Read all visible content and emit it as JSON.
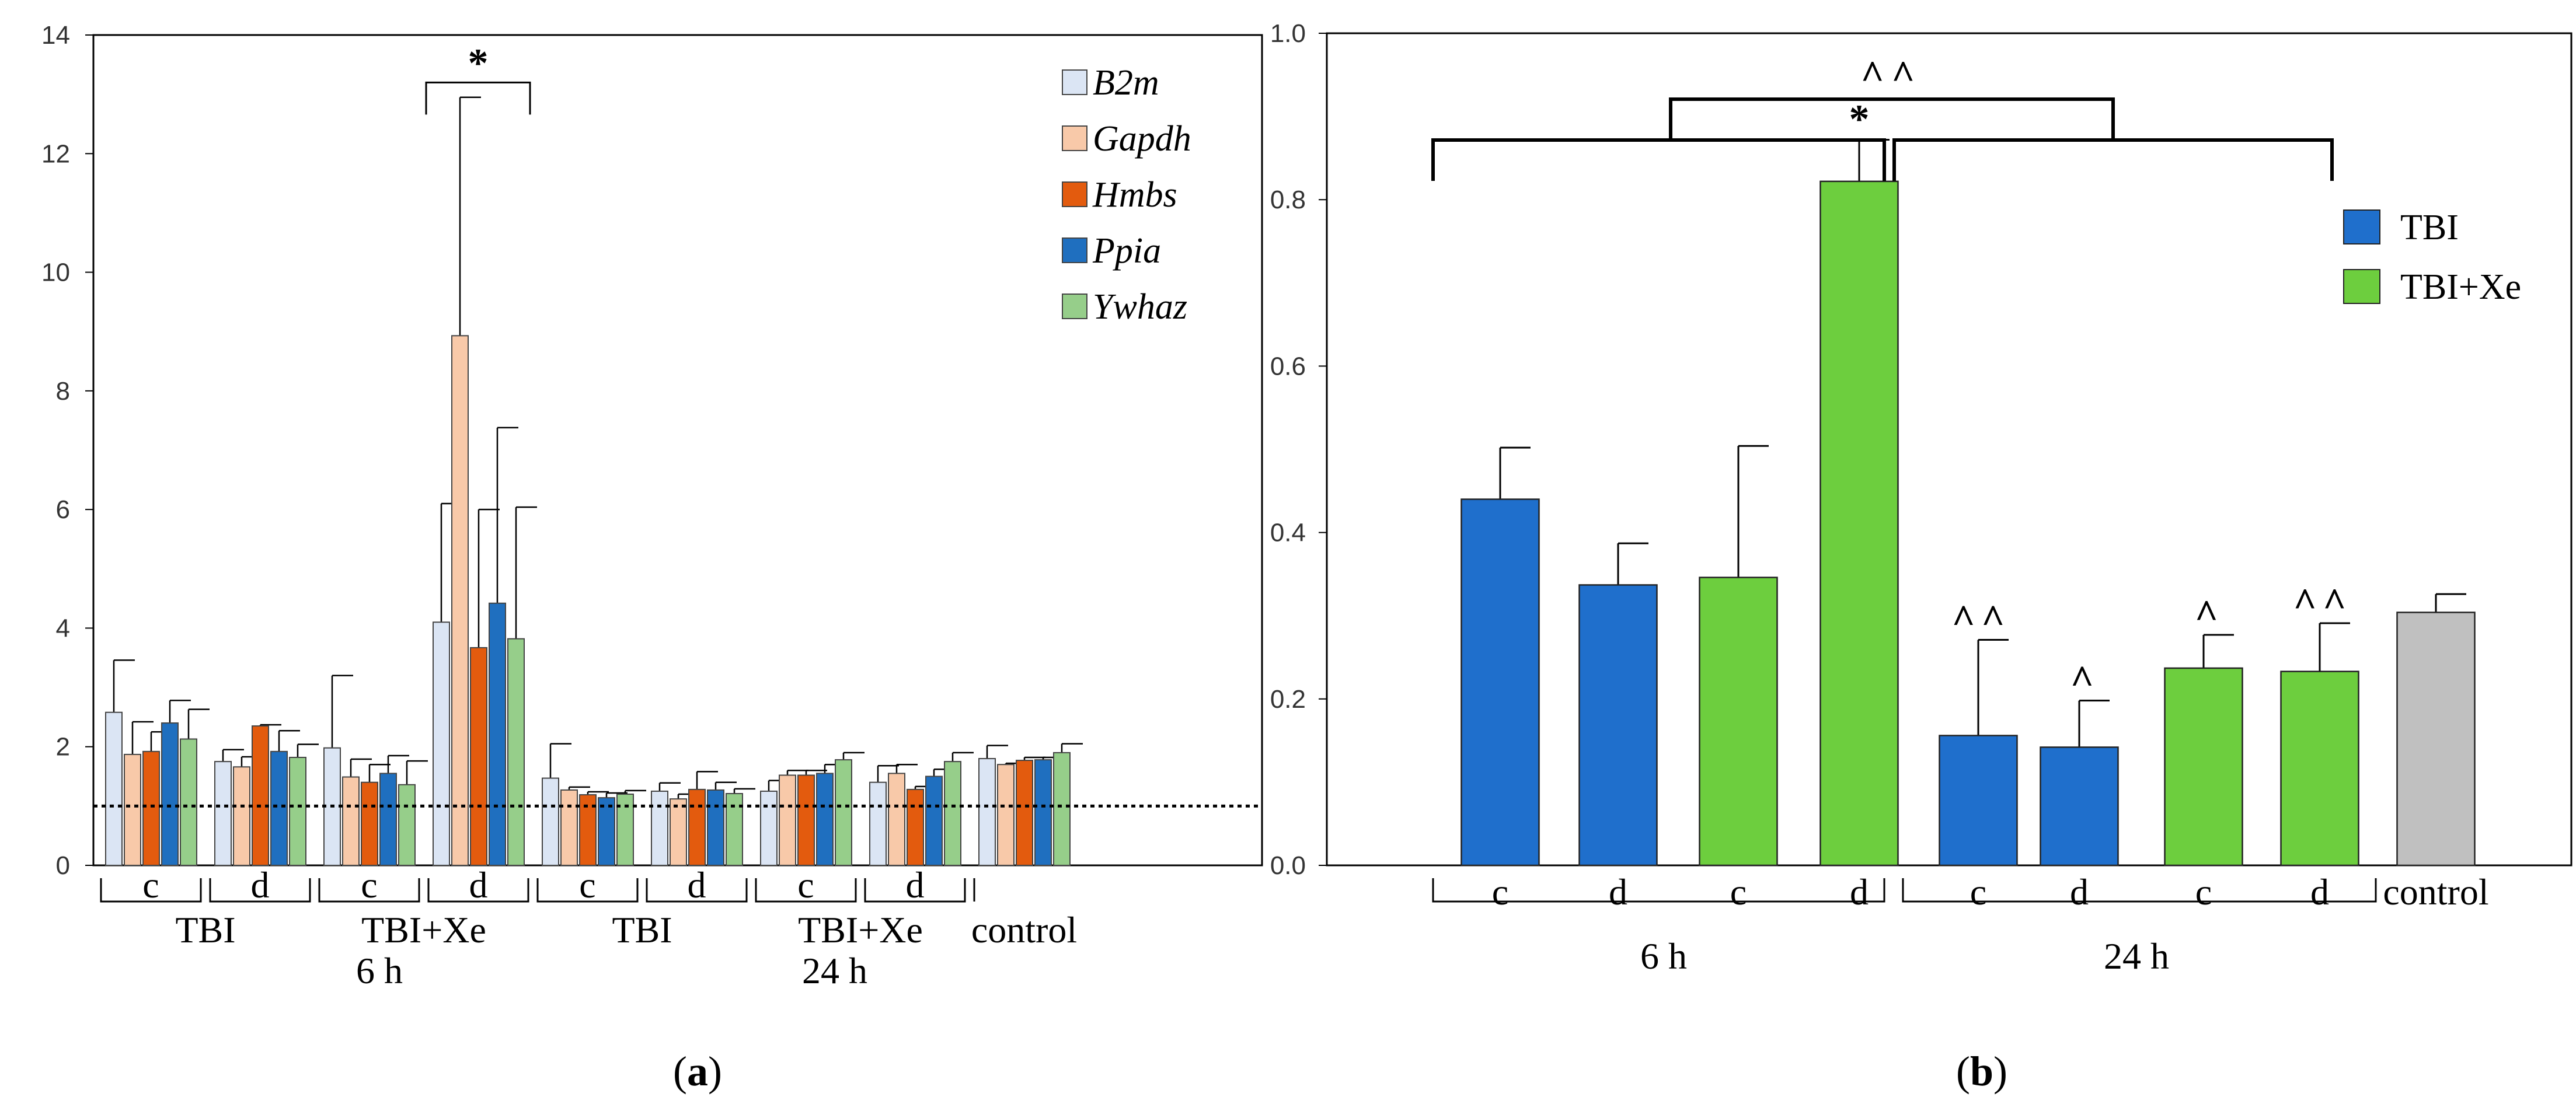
{
  "chart_data": [
    {
      "type": "bar",
      "panel_label": "(a)",
      "panel_letter": "a",
      "ylim": [
        0,
        14
      ],
      "yticks": [
        "0",
        "2",
        "4",
        "6",
        "8",
        "10",
        "12",
        "14"
      ],
      "ytick_values": [
        0,
        2,
        4,
        6,
        8,
        10,
        12,
        14
      ],
      "reference_line": 1,
      "series_names": [
        "B2m",
        "Gapdh",
        "Hmbs",
        "Ppia",
        "Ywhaz"
      ],
      "colors": [
        "#dbe5f4",
        "#f8c9a9",
        "#e35b0e",
        "#1f6fbf",
        "#96ce8a"
      ],
      "groups": [
        {
          "sub": "c",
          "values": [
            2.58,
            1.87,
            1.92,
            2.4,
            2.13
          ],
          "errors": [
            0.88,
            0.55,
            0.33,
            0.38,
            0.5
          ]
        },
        {
          "sub": "d",
          "values": [
            1.75,
            1.66,
            2.35,
            1.92,
            1.82
          ],
          "errors": [
            0.2,
            0.17,
            0.02,
            0.35,
            0.22
          ]
        },
        {
          "sub": "c",
          "values": [
            1.98,
            1.49,
            1.4,
            1.55,
            1.36
          ],
          "errors": [
            1.22,
            0.3,
            0.3,
            0.3,
            0.4
          ]
        },
        {
          "sub": "d",
          "values": [
            4.1,
            8.93,
            3.67,
            4.42,
            3.82
          ],
          "errors": [
            2.0,
            4.02,
            2.33,
            2.96,
            2.22
          ]
        },
        {
          "sub": "c",
          "values": [
            1.47,
            1.27,
            1.19,
            1.14,
            1.2
          ],
          "errors": [
            0.58,
            0.05,
            0.05,
            0.08,
            0.06
          ]
        },
        {
          "sub": "d",
          "values": [
            1.25,
            1.12,
            1.28,
            1.27,
            1.21
          ],
          "errors": [
            0.14,
            0.08,
            0.3,
            0.13,
            0.08
          ]
        },
        {
          "sub": "c",
          "values": [
            1.25,
            1.52,
            1.52,
            1.55,
            1.78
          ],
          "errors": [
            0.18,
            0.08,
            0.08,
            0.15,
            0.12
          ]
        },
        {
          "sub": "d",
          "values": [
            1.4,
            1.55,
            1.28,
            1.5,
            1.75
          ],
          "errors": [
            0.28,
            0.15,
            0.05,
            0.12,
            0.15
          ]
        },
        {
          "sub": "",
          "values": [
            1.8,
            1.7,
            1.77,
            1.78,
            1.9
          ],
          "errors": [
            0.22,
            0.02,
            0.05,
            0.04,
            0.15
          ]
        }
      ],
      "group_labels": [
        {
          "label": "TBI",
          "first": 0,
          "last": 1
        },
        {
          "label": "TBI+Xe",
          "first": 2,
          "last": 3
        },
        {
          "label": "TBI",
          "first": 4,
          "last": 5
        },
        {
          "label": "TBI+Xe",
          "first": 6,
          "last": 7
        },
        {
          "label": "control",
          "first": 8,
          "last": 8
        }
      ],
      "time_labels": [
        {
          "label": "6 h",
          "first": 0,
          "last": 3
        },
        {
          "label": "24 h",
          "first": 4,
          "last": 7
        }
      ],
      "annotation": {
        "text": "*",
        "from_group": 3,
        "at_value": 13.2
      }
    },
    {
      "type": "bar",
      "panel_label": "(b)",
      "panel_letter": "b",
      "ylim": [
        0,
        1.0
      ],
      "yticks": [
        "0.0",
        "0.2",
        "0.4",
        "0.6",
        "0.8",
        "1.0"
      ],
      "ytick_values": [
        0,
        0.2,
        0.4,
        0.6,
        0.8,
        1.0
      ],
      "legend": [
        {
          "name": "TBI",
          "color": "#1f6fcc"
        },
        {
          "name": "TBI+Xe",
          "color": "#6dce3e"
        }
      ],
      "control_color": "#c0c0c0",
      "bars": [
        {
          "cat": "c",
          "value": 0.44,
          "error": 0.062,
          "series": 0,
          "mark": ""
        },
        {
          "cat": "d",
          "value": 0.337,
          "error": 0.05,
          "series": 0,
          "mark": ""
        },
        {
          "cat": "c",
          "value": 0.346,
          "error": 0.158,
          "series": 1,
          "mark": ""
        },
        {
          "cat": "d",
          "value": 0.822,
          "error": 0.05,
          "series": 1,
          "mark": "*"
        },
        {
          "cat": "c",
          "value": 0.156,
          "error": 0.115,
          "series": 0,
          "mark": "^^"
        },
        {
          "cat": "d",
          "value": 0.142,
          "error": 0.056,
          "series": 0,
          "mark": "^"
        },
        {
          "cat": "c",
          "value": 0.237,
          "error": 0.04,
          "series": 1,
          "mark": "^"
        },
        {
          "cat": "d",
          "value": 0.233,
          "error": 0.058,
          "series": 1,
          "mark": "^^"
        },
        {
          "cat": "control",
          "value": 0.304,
          "error": 0.022,
          "series": 2,
          "mark": ""
        }
      ],
      "time_labels": [
        {
          "label": "6 h",
          "first": 0,
          "last": 3
        },
        {
          "label": "24 h",
          "first": 4,
          "last": 7
        }
      ],
      "top_annotation": "^^"
    }
  ]
}
